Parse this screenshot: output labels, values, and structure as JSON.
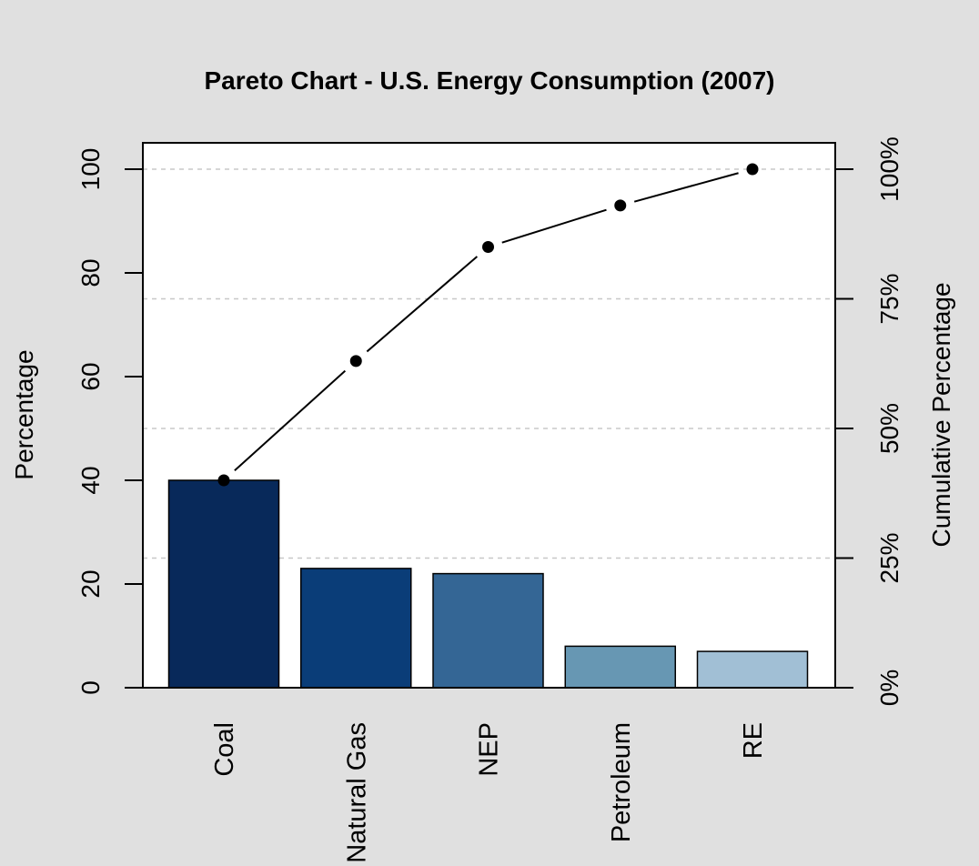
{
  "chart_data": {
    "type": "bar",
    "title": "Pareto Chart - U.S. Energy Consumption (2007)",
    "ylabel": "Percentage",
    "y2label": "Cumulative Percentage",
    "categories": [
      "Coal",
      "Natural Gas",
      "NEP",
      "Petroleum",
      "RE"
    ],
    "values": [
      40,
      23,
      22,
      8,
      7
    ],
    "bar_colors": [
      "#08295a",
      "#0a3d78",
      "#346695",
      "#6797b3",
      "#a1bfd5"
    ],
    "cumulative": [
      40,
      63,
      85,
      93,
      100
    ],
    "ylim": [
      0,
      105
    ],
    "yticks": [
      0,
      20,
      40,
      60,
      80,
      100
    ],
    "y2ticks": [
      "0%",
      "25%",
      "50%",
      "75%",
      "100%"
    ],
    "grid": "horizontal-dashed-at-right-axis-ticks"
  }
}
